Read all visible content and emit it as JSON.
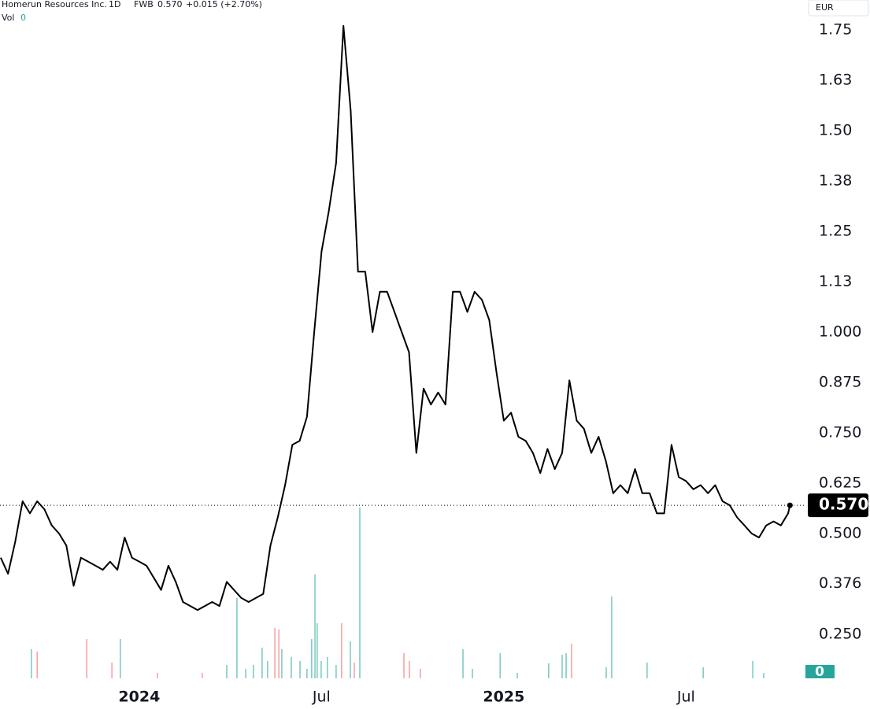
{
  "header": {
    "name": "Homerun Resources Inc.",
    "interval": "1D",
    "exchange": "FWB",
    "last": "0.570",
    "change": "+0.015 (+2.70%)",
    "vol_label": "Vol",
    "vol_value": "0",
    "currency": "EUR"
  },
  "chart_data": {
    "type": "line",
    "x": [
      2023.62,
      2023.64,
      2023.66,
      2023.68,
      2023.7,
      2023.72,
      2023.74,
      2023.76,
      2023.78,
      2023.8,
      2023.82,
      2023.84,
      2023.86,
      2023.88,
      2023.9,
      2023.92,
      2023.94,
      2023.96,
      2023.98,
      2024.0,
      2024.02,
      2024.04,
      2024.06,
      2024.08,
      2024.1,
      2024.12,
      2024.14,
      2024.16,
      2024.18,
      2024.2,
      2024.22,
      2024.24,
      2024.26,
      2024.28,
      2024.3,
      2024.32,
      2024.34,
      2024.36,
      2024.38,
      2024.4,
      2024.42,
      2024.44,
      2024.46,
      2024.48,
      2024.5,
      2024.52,
      2024.54,
      2024.56,
      2024.58,
      2024.6,
      2024.62,
      2024.64,
      2024.66,
      2024.68,
      2024.7,
      2024.72,
      2024.74,
      2024.76,
      2024.78,
      2024.8,
      2024.82,
      2024.84,
      2024.86,
      2024.88,
      2024.9,
      2024.92,
      2024.94,
      2024.96,
      2024.98,
      2025.0,
      2025.02,
      2025.04,
      2025.06,
      2025.08,
      2025.1,
      2025.12,
      2025.14,
      2025.16,
      2025.18,
      2025.2,
      2025.22,
      2025.24,
      2025.26,
      2025.28,
      2025.3,
      2025.32,
      2025.34,
      2025.36,
      2025.38,
      2025.4,
      2025.42,
      2025.44,
      2025.46,
      2025.48,
      2025.5,
      2025.52,
      2025.54,
      2025.56,
      2025.58,
      2025.6,
      2025.62,
      2025.64,
      2025.66,
      2025.68,
      2025.7,
      2025.72,
      2025.74,
      2025.76,
      2025.78,
      2025.785
    ],
    "series": [
      {
        "name": "Homerun Resources Inc.",
        "color": "#000000",
        "values": [
          0.44,
          0.4,
          0.48,
          0.58,
          0.55,
          0.58,
          0.56,
          0.52,
          0.5,
          0.47,
          0.37,
          0.44,
          0.43,
          0.42,
          0.41,
          0.43,
          0.41,
          0.49,
          0.44,
          0.43,
          0.42,
          0.39,
          0.36,
          0.42,
          0.38,
          0.33,
          0.32,
          0.31,
          0.32,
          0.33,
          0.32,
          0.38,
          0.36,
          0.34,
          0.33,
          0.34,
          0.35,
          0.47,
          0.54,
          0.62,
          0.72,
          0.73,
          0.79,
          1.0,
          1.2,
          1.3,
          1.42,
          1.76,
          1.55,
          1.15,
          1.15,
          1.0,
          1.1,
          1.1,
          1.05,
          1.0,
          0.95,
          0.7,
          0.86,
          0.82,
          0.85,
          0.82,
          1.1,
          1.1,
          1.05,
          1.1,
          1.08,
          1.03,
          0.9,
          0.78,
          0.8,
          0.74,
          0.73,
          0.7,
          0.65,
          0.71,
          0.66,
          0.7,
          0.88,
          0.78,
          0.76,
          0.7,
          0.74,
          0.68,
          0.6,
          0.62,
          0.6,
          0.66,
          0.6,
          0.6,
          0.55,
          0.55,
          0.72,
          0.64,
          0.63,
          0.61,
          0.62,
          0.6,
          0.62,
          0.58,
          0.57,
          0.54,
          0.52,
          0.5,
          0.49,
          0.52,
          0.53,
          0.52,
          0.55,
          0.57
        ]
      }
    ],
    "last_value": 0.57,
    "last_value_label": "0.570",
    "xlim": [
      2023.618,
      2025.821
    ],
    "xticks": [
      2024,
      {
        "value": 2024.5,
        "label": "Jul"
      },
      2025,
      {
        "value": 2025.5,
        "label": "Jul"
      }
    ],
    "ylim": [
      0.1406,
      1.8242
    ],
    "yticks": [
      1.75,
      {
        "value": 1.625,
        "label": "1.63"
      },
      {
        "value": 1.5,
        "label": "1.50"
      },
      {
        "value": 1.375,
        "label": "1.38"
      },
      1.25,
      {
        "value": 1.125,
        "label": "1.13"
      },
      {
        "value": 1,
        "label": "1.000"
      },
      0.875,
      {
        "value": 0.75,
        "label": "0.750"
      },
      0.625,
      {
        "value": 0.5,
        "label": "0.500"
      },
      0.376,
      {
        "value": 0.25,
        "label": "0.250"
      }
    ],
    "volume": {
      "x": [
        2023.704,
        2023.72,
        2023.856,
        2023.925,
        2023.948,
        2024.05,
        2024.173,
        2024.24,
        2024.268,
        2024.292,
        2024.313,
        2024.337,
        2024.352,
        2024.372,
        2024.383,
        2024.391,
        2024.417,
        2024.441,
        2024.46,
        2024.473,
        2024.482,
        2024.488,
        2024.499,
        2024.516,
        2024.54,
        2024.555,
        2024.579,
        2024.59,
        2024.605,
        2024.726,
        2024.741,
        2024.771,
        2024.888,
        2024.914,
        2024.99,
        2025.037,
        2025.123,
        2025.16,
        2025.171,
        2025.186,
        2025.281,
        2025.296,
        2025.393,
        2025.547,
        2025.683,
        2025.713
      ],
      "values": [
        37,
        34,
        50,
        20,
        50,
        7,
        7,
        17,
        102,
        12,
        17,
        39,
        22,
        64,
        62,
        37,
        27,
        22,
        12,
        50,
        132,
        70,
        22,
        27,
        17,
        70,
        47,
        20,
        217,
        32,
        22,
        12,
        37,
        12,
        32,
        7,
        19,
        30,
        32,
        44,
        14,
        104,
        20,
        14,
        22,
        7
      ],
      "colors": [
        "#80cbc4",
        "#f6a5a3",
        "#f6a5a3",
        "#f6a5a3",
        "#80cbc4",
        "#f6a5a3",
        "#f6a5a3",
        "#80cbc4",
        "#80cbc4",
        "#80cbc4",
        "#80cbc4",
        "#80cbc4",
        "#80cbc4",
        "#f6a5a3",
        "#f6a5a3",
        "#80cbc4",
        "#80cbc4",
        "#80cbc4",
        "#80cbc4",
        "#80cbc4",
        "#80cbc4",
        "#80cbc4",
        "#80cbc4",
        "#80cbc4",
        "#80cbc4",
        "#f6a5a3",
        "#80cbc4",
        "#f6a5a3",
        "#80cbc4",
        "#f6a5a3",
        "#f6a5a3",
        "#f6a5a3",
        "#80cbc4",
        "#80cbc4",
        "#80cbc4",
        "#80cbc4",
        "#80cbc4",
        "#80cbc4",
        "#80cbc4",
        "#f6a5a3",
        "#80cbc4",
        "#80cbc4",
        "#80cbc4",
        "#80cbc4",
        "#80cbc4",
        "#80cbc4"
      ],
      "ylim": [
        0,
        300
      ],
      "yticks": [
        0
      ],
      "tick_color": "#26a69a"
    }
  }
}
